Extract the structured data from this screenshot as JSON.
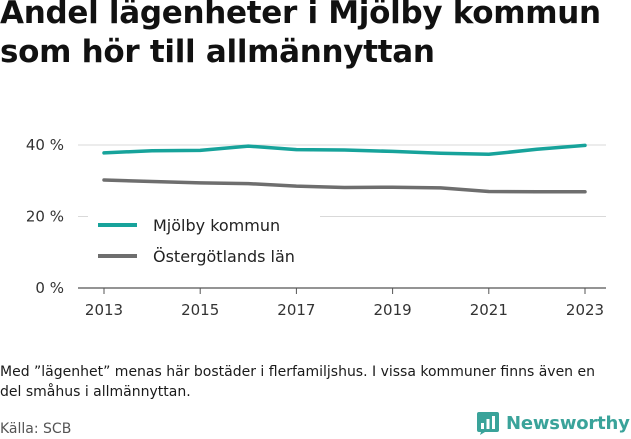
{
  "title": "Andel lägenheter i Mjölby kommun som hör till allmännyttan",
  "note": "Med ”lägenhet” menas här bostäder i flerfamiljshus. I vissa kommuner finns även en del småhus i allmännyttan.",
  "source": "Källa: SCB",
  "brand": {
    "name": "Newsworthy",
    "icon": "bar-chart-badge-icon"
  },
  "colors": {
    "mjolby": "#17a39b",
    "ostergotland": "#6e6e6e",
    "brand": "#3aa39a"
  },
  "chart_data": {
    "type": "line",
    "title": "Andel lägenheter i Mjölby kommun som hör till allmännyttan",
    "xlabel": "",
    "ylabel": "",
    "x": [
      2013,
      2014,
      2015,
      2016,
      2017,
      2018,
      2019,
      2020,
      2021,
      2022,
      2023
    ],
    "x_ticks": [
      "2013",
      "2015",
      "2017",
      "2019",
      "2021",
      "2023"
    ],
    "y_ticks": [
      "40 %",
      "20 %",
      "0 %"
    ],
    "y_tick_values": [
      40,
      20,
      0
    ],
    "ylim": [
      0,
      40
    ],
    "grid": "horizontal",
    "legend_position": "left",
    "series": [
      {
        "name": "Mjölby kommun",
        "color": "#17a39b",
        "values": [
          37.8,
          38.4,
          38.5,
          39.7,
          38.7,
          38.6,
          38.2,
          37.7,
          37.4,
          38.8,
          39.9
        ]
      },
      {
        "name": "Östergötlands län",
        "color": "#6e6e6e",
        "values": [
          30.2,
          29.8,
          29.4,
          29.2,
          28.5,
          28.1,
          28.2,
          28.0,
          27.0,
          26.9,
          26.9
        ]
      }
    ]
  }
}
